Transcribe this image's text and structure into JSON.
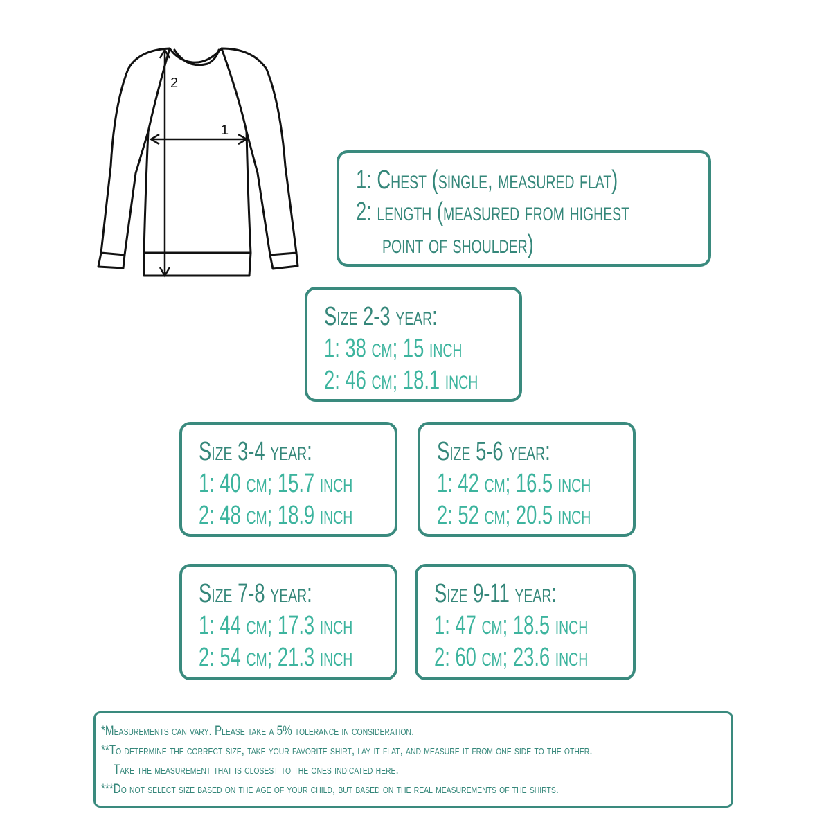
{
  "diagram": {
    "label_chest": "1",
    "label_length": "2"
  },
  "legend": {
    "line1": "1: Chest (single, measured flat)",
    "line2": "2: length (measured from highest",
    "line3": "point of shoulder)"
  },
  "sizes": [
    {
      "title": "Size 2-3 year:",
      "chest": "1: 38 cm; 15 inch",
      "length": "2: 46 cm; 18.1 inch"
    },
    {
      "title": "Size 3-4 year:",
      "chest": "1: 40 cm; 15.7 inch",
      "length": "2: 48 cm; 18.9 inch"
    },
    {
      "title": "Size 5-6 year:",
      "chest": "1: 42 cm; 16.5 inch",
      "length": "2: 52 cm;  20.5 inch"
    },
    {
      "title": "Size 7-8 year:",
      "chest": "1: 44 cm; 17.3 inch",
      "length": "2: 54 cm; 21.3 inch"
    },
    {
      "title": "Size 9-11 year:",
      "chest": "1: 47 cm; 18.5 inch",
      "length": "2: 60 cm; 23.6 inch"
    }
  ],
  "notes": [
    "*Measurements can vary. Please take a 5% tolerance in consideration.",
    "**To determine the correct size, take your favorite shirt, lay it flat, and measure it from one side to the other.",
    "Take the measurement that is closest to the ones indicated here.",
    "***Do not select size based on the age of your child, but based on the real measurements of the shirts."
  ],
  "colors": {
    "border": "#3a8a7e",
    "heading": "#35877a",
    "value": "#3db49e"
  }
}
